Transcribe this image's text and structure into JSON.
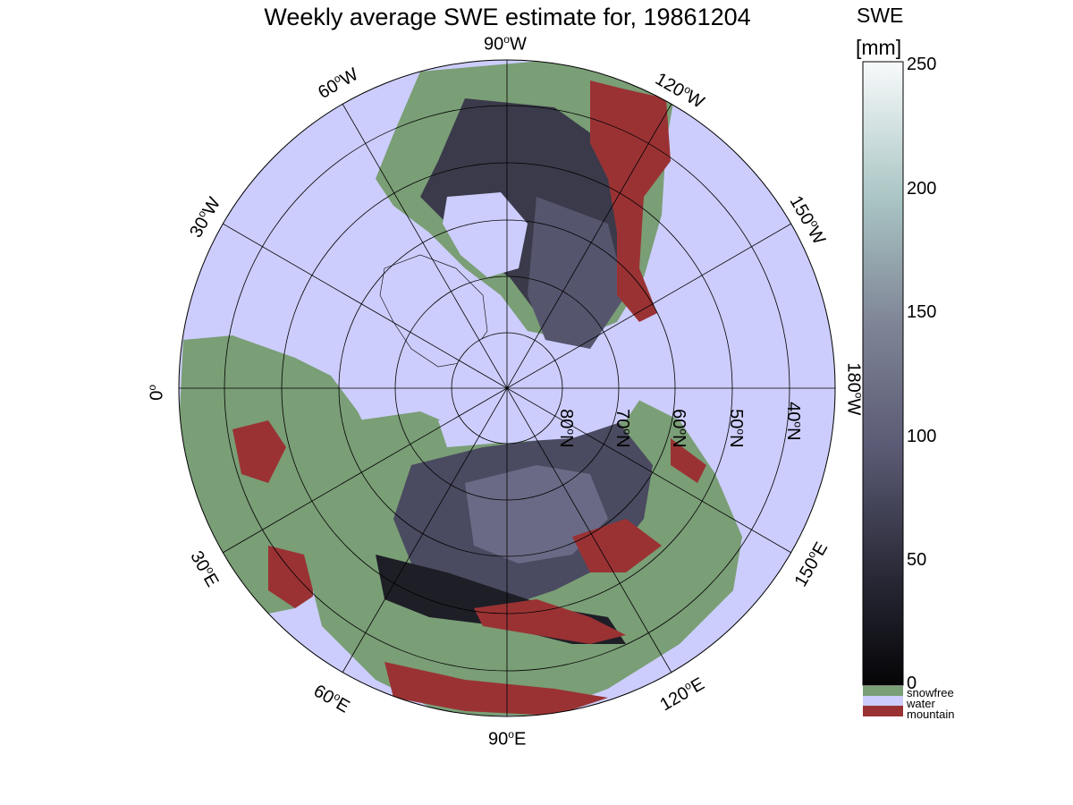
{
  "title": "Weekly average SWE estimate for, 19861204",
  "colorbar": {
    "unit_line1": "SWE",
    "unit_line2": "[mm]",
    "ticks": [
      "0",
      "50",
      "100",
      "150",
      "200",
      "250"
    ],
    "categories": [
      {
        "label": "snowfree",
        "color": "#7a9e76"
      },
      {
        "label": "water",
        "color": "#cccdfc"
      },
      {
        "label": "mountain",
        "color": "#9a3234"
      }
    ]
  },
  "longitude_labels": {
    "lon_90W": "90",
    "lon_60W": "60",
    "lon_120W": "120",
    "lon_30W": "30",
    "lon_150W": "150",
    "lon_0": "0",
    "lon_180W": "180",
    "lon_30E": "30",
    "lon_150E": "150",
    "lon_60E": "60",
    "lon_120E": "120",
    "lon_90E": "90"
  },
  "hemisphere_suffix": {
    "W": "W",
    "E": "E",
    "N": "N",
    "degree": "o"
  },
  "latitude_labels": {
    "lat_80N": "80",
    "lat_70N": "70",
    "lat_60N": "60",
    "lat_50N": "50",
    "lat_40N": "40"
  },
  "colors": {
    "ocean": "#cccdfc",
    "snowfree": "#7a9e76",
    "mountain": "#9a3234",
    "swe_low": "#2a2a33",
    "swe_mid": "#5a5a78"
  }
}
